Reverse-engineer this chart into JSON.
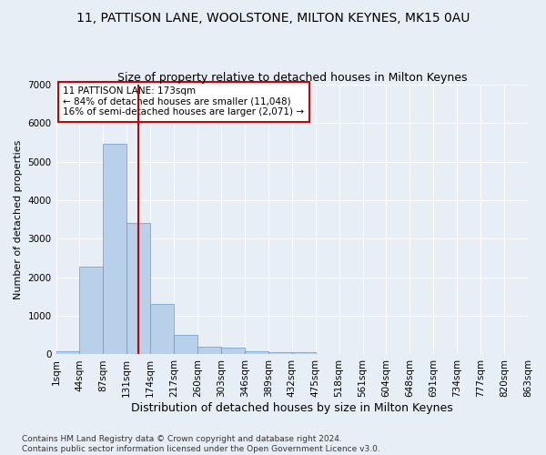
{
  "title1": "11, PATTISON LANE, WOOLSTONE, MILTON KEYNES, MK15 0AU",
  "title2": "Size of property relative to detached houses in Milton Keynes",
  "xlabel": "Distribution of detached houses by size in Milton Keynes",
  "ylabel": "Number of detached properties",
  "footnote": "Contains HM Land Registry data © Crown copyright and database right 2024.\nContains public sector information licensed under the Open Government Licence v3.0.",
  "bin_labels": [
    "1sqm",
    "44sqm",
    "87sqm",
    "131sqm",
    "174sqm",
    "217sqm",
    "260sqm",
    "303sqm",
    "346sqm",
    "389sqm",
    "432sqm",
    "475sqm",
    "518sqm",
    "561sqm",
    "604sqm",
    "648sqm",
    "691sqm",
    "734sqm",
    "777sqm",
    "820sqm",
    "863sqm"
  ],
  "bar_values": [
    75,
    2280,
    5480,
    3420,
    1300,
    500,
    195,
    175,
    90,
    65,
    55,
    0,
    0,
    0,
    0,
    0,
    0,
    0,
    0,
    0
  ],
  "bar_color": "#b8d0ea",
  "bar_edge_color": "#6699cc",
  "vline_x": 3,
  "vline_color": "#cc0000",
  "annotation_text": "11 PATTISON LANE: 173sqm\n← 84% of detached houses are smaller (11,048)\n16% of semi-detached houses are larger (2,071) →",
  "annotation_box_color": "#ffffff",
  "annotation_box_edge": "#cc0000",
  "ylim": [
    0,
    7000
  ],
  "yticks": [
    0,
    1000,
    2000,
    3000,
    4000,
    5000,
    6000,
    7000
  ],
  "bg_color": "#e8eef5",
  "plot_bg_color": "#e8eef5",
  "grid_color": "#ffffff",
  "title1_fontsize": 10,
  "title2_fontsize": 9,
  "xlabel_fontsize": 9,
  "ylabel_fontsize": 8,
  "tick_fontsize": 7.5,
  "footnote_fontsize": 6.5
}
